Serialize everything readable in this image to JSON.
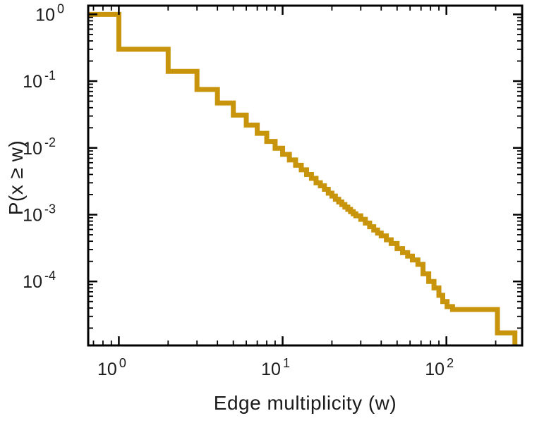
{
  "figure": {
    "background": "#ffffff"
  },
  "chart_data": {
    "type": "line",
    "subtype": "ccdf-step-staircase",
    "title": "",
    "xlabel": "Edge multiplicity (w)",
    "ylabel": "P(x ≥ w)",
    "x_scale": "log",
    "y_scale": "log",
    "xlim": [
      0.65,
      290
    ],
    "ylim": [
      1.1e-05,
      1.35
    ],
    "x_tick_labels": [
      "10^0",
      "10^1",
      "10^2"
    ],
    "x_tick_exponents": [
      0,
      1,
      2
    ],
    "y_tick_labels": [
      "10^0",
      "10^-1",
      "10^-2",
      "10^-3",
      "10^-4"
    ],
    "y_tick_exponents": [
      0,
      -1,
      -2,
      -3,
      -4
    ],
    "legend": "none",
    "grid": "off",
    "line_color": "#C8940B",
    "line_width": 7,
    "axis_color": "#000000",
    "tick_label_color": "#1a1a1a",
    "initial_p": 1.0,
    "end_w": 262,
    "ccdf_steps": [
      [
        1,
        0.3
      ],
      [
        2,
        0.14
      ],
      [
        3,
        0.075
      ],
      [
        4,
        0.047
      ],
      [
        5,
        0.031
      ],
      [
        6,
        0.022
      ],
      [
        7,
        0.0165
      ],
      [
        8,
        0.0125
      ],
      [
        9,
        0.0099
      ],
      [
        10,
        0.008
      ],
      [
        11,
        0.0066
      ],
      [
        12,
        0.0055
      ],
      [
        13,
        0.0047
      ],
      [
        14,
        0.004
      ],
      [
        15,
        0.0035
      ],
      [
        16,
        0.003
      ],
      [
        17,
        0.0027
      ],
      [
        18,
        0.0024
      ],
      [
        19,
        0.0021
      ],
      [
        20,
        0.0019
      ],
      [
        21,
        0.0017
      ],
      [
        22,
        0.00155
      ],
      [
        23,
        0.00142
      ],
      [
        24,
        0.0013
      ],
      [
        25,
        0.0012
      ],
      [
        26,
        0.00111
      ],
      [
        27,
        0.00103
      ],
      [
        28,
        0.00096
      ],
      [
        30,
        0.00085
      ],
      [
        32,
        0.00075
      ],
      [
        34,
        0.00066
      ],
      [
        36,
        0.00059
      ],
      [
        38,
        0.00053
      ],
      [
        40,
        0.00048
      ],
      [
        43,
        0.00042
      ],
      [
        46,
        0.00037
      ],
      [
        50,
        0.00031
      ],
      [
        54,
        0.00027
      ],
      [
        58,
        0.00024
      ],
      [
        62,
        0.00021
      ],
      [
        67,
        0.00018
      ],
      [
        72,
        0.00013
      ],
      [
        78,
        0.0001
      ],
      [
        84,
        8e-05
      ],
      [
        90,
        6.2e-05
      ],
      [
        95,
        5e-05
      ],
      [
        101,
        4.2e-05
      ],
      [
        109,
        3.8e-05
      ],
      [
        205,
        1.7e-05
      ]
    ]
  }
}
